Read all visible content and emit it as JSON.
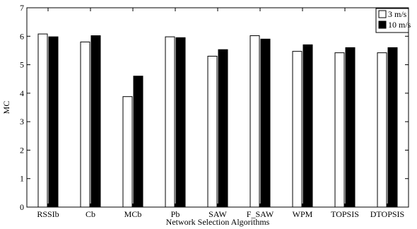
{
  "chart_data": {
    "type": "bar",
    "title": "",
    "xlabel": "Network Selection Algorithms",
    "ylabel": "MC",
    "ylim": [
      0,
      7
    ],
    "yticks": [
      0,
      1,
      2,
      3,
      4,
      5,
      6,
      7
    ],
    "grid": false,
    "legend_position": "top-right",
    "categories": [
      "RSSIb",
      "Cb",
      "MCb",
      "Pb",
      "SAW",
      "F_SAW",
      "WPM",
      "TOPSIS",
      "DTOPSIS"
    ],
    "series": [
      {
        "name": "3 m/s",
        "color": "#ffffff",
        "values": [
          6.08,
          5.8,
          3.88,
          5.98,
          5.3,
          6.02,
          5.47,
          5.42,
          5.42
        ]
      },
      {
        "name": "10 m/s",
        "color": "#000000",
        "values": [
          5.98,
          6.02,
          4.6,
          5.95,
          5.53,
          5.9,
          5.7,
          5.6,
          5.6
        ]
      }
    ]
  }
}
